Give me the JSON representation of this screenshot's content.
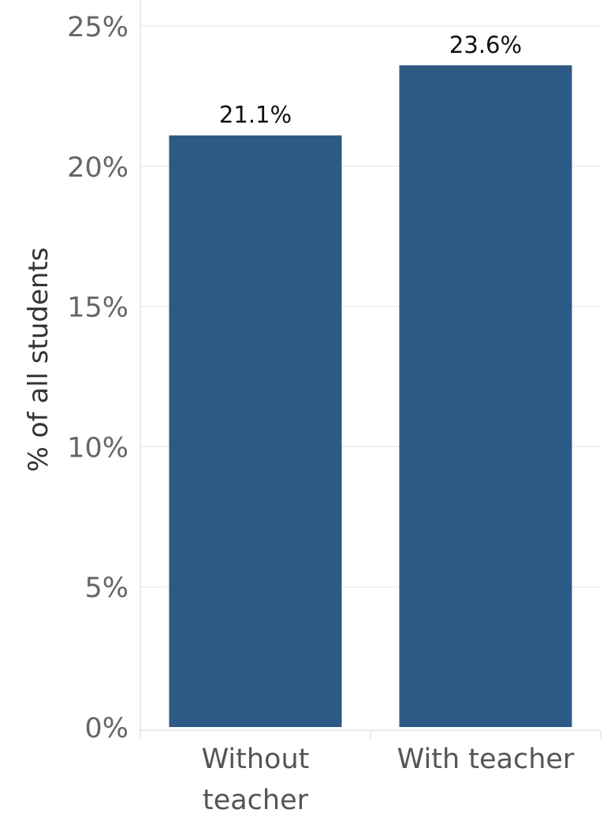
{
  "chart_data": {
    "type": "bar",
    "categories": [
      "Without teacher",
      "With teacher"
    ],
    "category_label_lines": [
      [
        "Without",
        "teacher"
      ],
      [
        "With teacher"
      ]
    ],
    "values": [
      21.1,
      23.6
    ],
    "data_labels": [
      "21.1%",
      "23.6%"
    ],
    "ylabel": "% of all students",
    "xlabel": "",
    "ylim": [
      0,
      25
    ],
    "yticks": [
      0,
      5,
      10,
      15,
      20,
      25
    ],
    "ytick_labels": [
      "0%",
      "5%",
      "10%",
      "15%",
      "20%",
      "25%"
    ],
    "grid": true,
    "bar_color": "#2d5985"
  }
}
